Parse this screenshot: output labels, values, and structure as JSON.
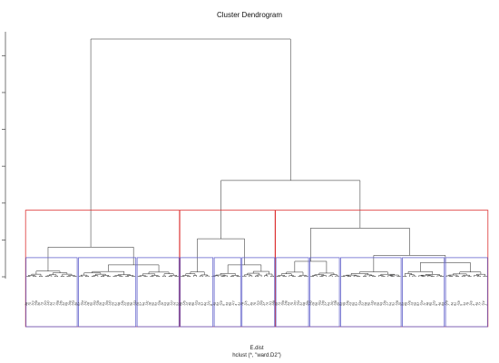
{
  "chart_data": {
    "type": "dendrogram",
    "title": "Cluster Dendrogram",
    "xlabel": "E.dist",
    "sub": "hclust (*, \"ward.D2\")",
    "ylabel": "",
    "leaf_count": 150,
    "merges": [
      {
        "id": "root",
        "height": 1.0,
        "children": [
          "A",
          "BC"
        ]
      },
      {
        "id": "BC",
        "height": 0.405,
        "children": [
          "B",
          "C"
        ]
      },
      {
        "id": "A",
        "height": 0.125,
        "children": [
          "A1",
          "A2"
        ]
      },
      {
        "id": "B",
        "height": 0.16,
        "children": [
          "B1",
          "B2"
        ]
      },
      {
        "id": "C",
        "height": 0.205,
        "children": [
          "C1",
          "C2"
        ]
      },
      {
        "id": "C2",
        "height": 0.09,
        "children": [
          "C2a",
          "C2b"
        ]
      }
    ],
    "cluster_cuts": [
      {
        "height": 0.28,
        "k": 3,
        "color": "#dd3333",
        "groups": [
          {
            "leaves": [
              1,
              50
            ]
          },
          {
            "leaves": [
              51,
              81
            ]
          },
          {
            "leaves": [
              82,
              150
            ]
          }
        ]
      },
      {
        "height": 0.05,
        "k": 12,
        "color": "#6666cc"
      }
    ],
    "grid": false,
    "legend": "none"
  }
}
